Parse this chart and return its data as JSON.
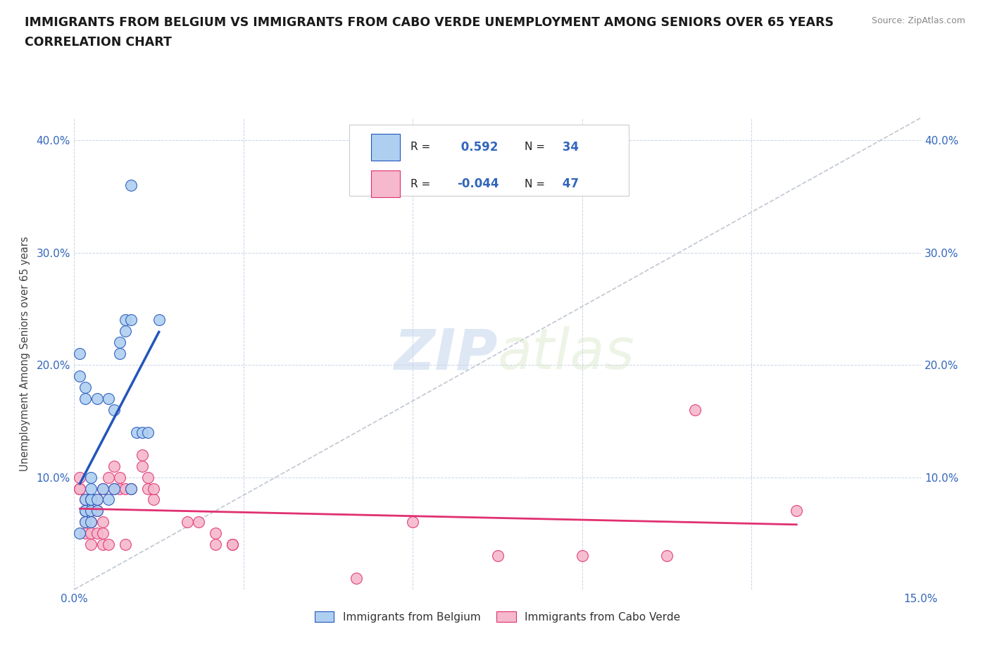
{
  "title_line1": "IMMIGRANTS FROM BELGIUM VS IMMIGRANTS FROM CABO VERDE UNEMPLOYMENT AMONG SENIORS OVER 65 YEARS",
  "title_line2": "CORRELATION CHART",
  "source": "Source: ZipAtlas.com",
  "ylabel": "Unemployment Among Seniors over 65 years",
  "xlim": [
    0.0,
    0.15
  ],
  "ylim": [
    0.0,
    0.42
  ],
  "xticks": [
    0.0,
    0.03,
    0.06,
    0.09,
    0.12,
    0.15
  ],
  "xtick_labels": [
    "0.0%",
    "",
    "",
    "",
    "",
    "15.0%"
  ],
  "yticks": [
    0.0,
    0.1,
    0.2,
    0.3,
    0.4
  ],
  "ytick_labels": [
    "",
    "10.0%",
    "20.0%",
    "30.0%",
    "40.0%"
  ],
  "legend_label1": "Immigrants from Belgium",
  "legend_label2": "Immigrants from Cabo Verde",
  "r1": 0.592,
  "n1": 34,
  "r2": -0.044,
  "n2": 47,
  "color_belgium": "#aecff0",
  "color_caboverde": "#f5b8cc",
  "color_belgium_line": "#2255bb",
  "color_caboverde_line": "#e03070",
  "color_diag": "#b0b8c8",
  "watermark_zip": "ZIP",
  "watermark_atlas": "atlas",
  "belgium_x": [
    0.001,
    0.001,
    0.002,
    0.002,
    0.002,
    0.002,
    0.003,
    0.003,
    0.003,
    0.003,
    0.004,
    0.004,
    0.005,
    0.006,
    0.006,
    0.007,
    0.008,
    0.008,
    0.009,
    0.009,
    0.01,
    0.01,
    0.011,
    0.012,
    0.013,
    0.015,
    0.001,
    0.002,
    0.002,
    0.003,
    0.003,
    0.004,
    0.007,
    0.01
  ],
  "belgium_y": [
    0.21,
    0.19,
    0.17,
    0.18,
    0.08,
    0.07,
    0.08,
    0.08,
    0.09,
    0.1,
    0.08,
    0.17,
    0.09,
    0.08,
    0.17,
    0.09,
    0.21,
    0.22,
    0.24,
    0.23,
    0.24,
    0.09,
    0.14,
    0.14,
    0.14,
    0.24,
    0.05,
    0.06,
    0.07,
    0.06,
    0.07,
    0.07,
    0.16,
    0.36
  ],
  "caboverde_x": [
    0.001,
    0.001,
    0.001,
    0.002,
    0.002,
    0.002,
    0.002,
    0.003,
    0.003,
    0.003,
    0.003,
    0.003,
    0.004,
    0.004,
    0.004,
    0.005,
    0.005,
    0.005,
    0.005,
    0.006,
    0.006,
    0.007,
    0.007,
    0.008,
    0.008,
    0.009,
    0.009,
    0.01,
    0.012,
    0.012,
    0.013,
    0.013,
    0.014,
    0.014,
    0.02,
    0.022,
    0.025,
    0.025,
    0.028,
    0.028,
    0.05,
    0.06,
    0.075,
    0.09,
    0.105,
    0.11,
    0.128
  ],
  "caboverde_y": [
    0.09,
    0.09,
    0.1,
    0.05,
    0.06,
    0.07,
    0.08,
    0.04,
    0.05,
    0.06,
    0.06,
    0.07,
    0.05,
    0.07,
    0.08,
    0.04,
    0.05,
    0.06,
    0.09,
    0.04,
    0.1,
    0.09,
    0.11,
    0.09,
    0.1,
    0.04,
    0.09,
    0.09,
    0.11,
    0.12,
    0.09,
    0.1,
    0.08,
    0.09,
    0.06,
    0.06,
    0.04,
    0.05,
    0.04,
    0.04,
    0.01,
    0.06,
    0.03,
    0.03,
    0.03,
    0.16,
    0.07
  ],
  "background_color": "#ffffff",
  "grid_color": "#c8d4e8",
  "title_color": "#1a1a1a",
  "axis_tick_color": "#3366bb"
}
